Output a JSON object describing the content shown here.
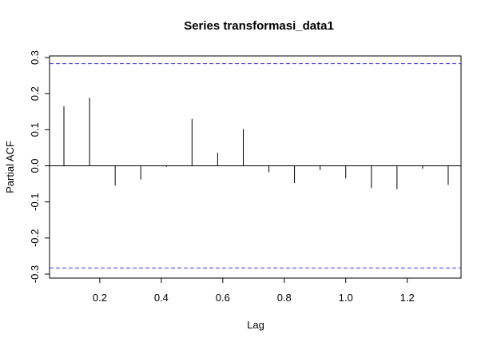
{
  "chart_data": {
    "type": "bar",
    "title": "Series  transformasi_data1",
    "xlabel": "Lag",
    "ylabel": "Partial ACF",
    "xlim": [
      0.0365,
      1.375
    ],
    "ylim": [
      -0.3,
      0.3
    ],
    "x_ticks": [
      0.2,
      0.4,
      0.6,
      0.8,
      1.0,
      1.2
    ],
    "x_tick_labels": [
      "0.2",
      "0.4",
      "0.6",
      "0.8",
      "1.0",
      "1.2"
    ],
    "y_ticks": [
      -0.3,
      -0.2,
      -0.1,
      0.0,
      0.1,
      0.2,
      0.3
    ],
    "y_tick_labels": [
      "-0.3",
      "-0.2",
      "-0.1",
      "0.0",
      "0.1",
      "0.2",
      "0.3"
    ],
    "confidence_bound": 0.283,
    "grid": false,
    "series": [
      {
        "lags": [
          0.0833,
          0.1667,
          0.25,
          0.3333,
          0.4167,
          0.5,
          0.5833,
          0.6667,
          0.75,
          0.8333,
          0.9167,
          1.0,
          1.0833,
          1.1667,
          1.25,
          1.3333
        ],
        "values": [
          0.165,
          0.188,
          -0.055,
          -0.038,
          -0.003,
          0.13,
          0.036,
          0.102,
          -0.018,
          -0.048,
          -0.012,
          -0.035,
          -0.062,
          -0.065,
          -0.008,
          -0.053
        ]
      }
    ]
  }
}
